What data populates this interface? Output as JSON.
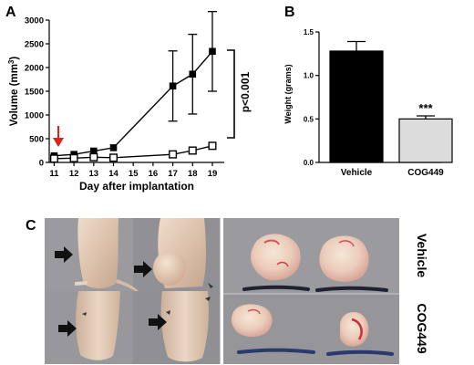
{
  "panel_labels": {
    "a": "A",
    "b": "B",
    "c": "C"
  },
  "chart_data": [
    {
      "type": "line",
      "xlabel": "Day after implantation",
      "ylabel": "Volume (mm",
      "ylabel_superscript": "3",
      "ylabel_close": ")",
      "x": [
        11,
        12,
        13,
        14,
        17,
        18,
        19
      ],
      "xticks": [
        11,
        12,
        13,
        14,
        15,
        16,
        17,
        18,
        19
      ],
      "xlim": [
        10.75,
        19.6
      ],
      "ylim": [
        0,
        3000
      ],
      "yticks": [
        0,
        500,
        1000,
        1500,
        2000,
        2500,
        3000
      ],
      "series": [
        {
          "marker": "filled-square",
          "values": [
            140,
            170,
            240,
            310,
            1610,
            1860,
            2340
          ],
          "errors": [
            0,
            0,
            0,
            0,
            740,
            840,
            840
          ]
        },
        {
          "marker": "open-square",
          "values": [
            80,
            90,
            110,
            100,
            170,
            250,
            350
          ],
          "errors": [
            0,
            0,
            0,
            0,
            0,
            0,
            0
          ]
        }
      ],
      "annotation": "p<0.001",
      "arrow_color": "#e0201b"
    },
    {
      "type": "bar",
      "categories": [
        "Vehicle",
        "COG449"
      ],
      "values": [
        1.28,
        0.5
      ],
      "errors": [
        0.11,
        0.035
      ],
      "colors": [
        "#000000",
        "#dcdcdc"
      ],
      "ylabel": "Weight (grams)",
      "ylim": [
        0,
        1.5
      ],
      "yticks": [
        0.0,
        0.5,
        1.0,
        1.5
      ],
      "ytick_labels": [
        "0.0",
        "0.5",
        "1.0",
        "1.5"
      ],
      "significance": "***"
    }
  ],
  "photos": {
    "row_labels": [
      "Vehicle",
      "COG449"
    ]
  }
}
